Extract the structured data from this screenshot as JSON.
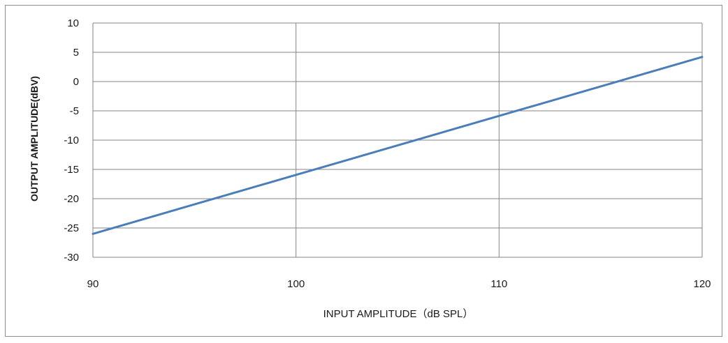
{
  "chart_data": {
    "type": "line",
    "xlabel": "INPUT AMPLITUDE（dB SPL）",
    "ylabel": "OUTPUT AMPLITUDE(dBV)",
    "xlim": [
      90,
      120
    ],
    "ylim": [
      -30,
      10
    ],
    "x_ticks": [
      90,
      100,
      110,
      120
    ],
    "y_ticks": [
      10,
      5,
      0,
      -5,
      -10,
      -15,
      -20,
      -25,
      -30
    ],
    "grid": true,
    "legend": "none",
    "line_color": "#4a7ebb",
    "grid_color": "#868686",
    "series": [
      {
        "x": [
          90,
          120
        ],
        "y": [
          -26,
          4.2
        ]
      }
    ]
  }
}
